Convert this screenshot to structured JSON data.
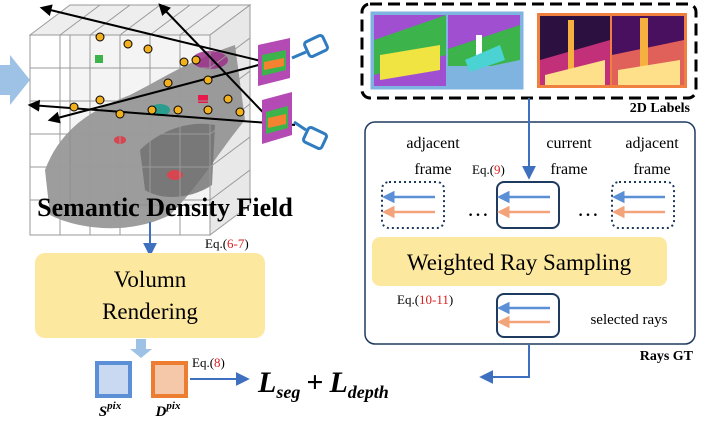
{
  "left": {
    "title": "Semantic Density Field",
    "eq_prefix": "Eq.(",
    "eq1_ref": "6-7",
    "eq_suffix": ")",
    "render_box_line1": "Volumn",
    "render_box_line2": "Rendering",
    "eq2_ref": "8",
    "s_label": "S",
    "s_sup": "pix",
    "d_label": "D",
    "d_sup": "pix"
  },
  "loss": {
    "l1": "L",
    "l1_sub": "seg",
    "plus": "+",
    "l2": "L",
    "l2_sub": "depth"
  },
  "right": {
    "labels_caption": "2D Labels",
    "adjacent_left_1": "adjacent",
    "adjacent_left_2": "frame",
    "current_1": "current",
    "current_2": "frame",
    "adjacent_right_1": "adjacent",
    "adjacent_right_2": "frame",
    "eq_prefix": "Eq.(",
    "eq3_ref": "9",
    "eq_suffix": ")",
    "dots": "…",
    "wrs_label": "Weighted Ray Sampling",
    "eq4_ref": "10-11",
    "selected_rays": "selected rays",
    "rays_gt": "Rays GT"
  },
  "colors": {
    "box_yellow": "#fde8a0",
    "arrow_blue": "#3f6fbf",
    "eq_red": "#d92020",
    "ray_blue": "#5b8fd6",
    "ray_orange": "#f2a37a",
    "s_fill": "#c9d9f2",
    "s_border": "#5b8fd6",
    "d_fill": "#f6c8aa",
    "d_border": "#ed7d31",
    "camera": "#2f7cc0",
    "light_arrow": "#9ec1e6"
  },
  "icons": [
    "voxel-grid-icon",
    "camera-icon",
    "ray-arrows-icon",
    "semantic-label-image",
    "depth-label-image"
  ]
}
